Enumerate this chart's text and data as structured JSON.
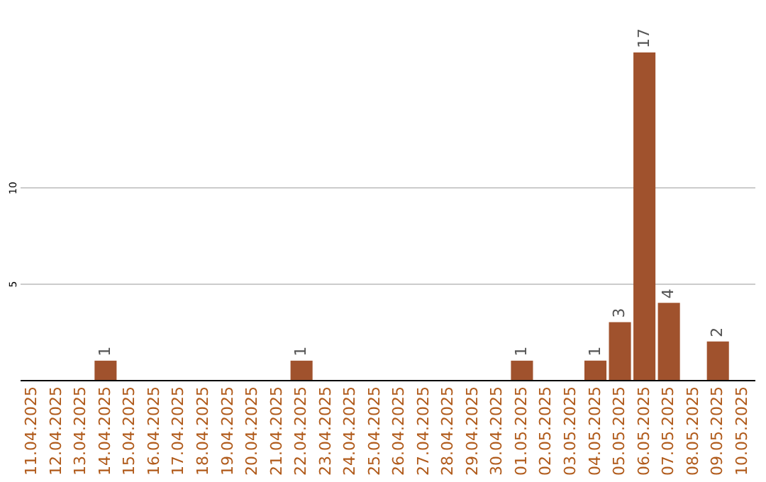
{
  "chart_data": {
    "type": "bar",
    "categories": [
      "11.04.2025",
      "12.04.2025",
      "13.04.2025",
      "14.04.2025",
      "15.04.2025",
      "16.04.2025",
      "17.04.2025",
      "18.04.2025",
      "19.04.2025",
      "20.04.2025",
      "21.04.2025",
      "22.04.2025",
      "23.04.2025",
      "24.04.2025",
      "25.04.2025",
      "26.04.2025",
      "27.04.2025",
      "28.04.2025",
      "29.04.2025",
      "30.04.2025",
      "01.05.2025",
      "02.05.2025",
      "03.05.2025",
      "04.05.2025",
      "05.05.2025",
      "06.05.2025",
      "07.05.2025",
      "08.05.2025",
      "09.05.2025",
      "10.05.2025"
    ],
    "values": [
      0,
      0,
      0,
      1,
      0,
      0,
      0,
      0,
      0,
      0,
      0,
      1,
      0,
      0,
      0,
      0,
      0,
      0,
      0,
      0,
      1,
      0,
      0,
      1,
      3,
      17,
      4,
      0,
      2,
      0
    ],
    "value_labels": [
      null,
      null,
      null,
      "1",
      null,
      null,
      null,
      null,
      null,
      null,
      null,
      "1",
      null,
      null,
      null,
      null,
      null,
      null,
      null,
      null,
      "1",
      null,
      null,
      "1",
      "3",
      "17",
      "4",
      null,
      "2",
      null
    ],
    "color": "#a0522d",
    "ylim": [
      0,
      17
    ],
    "yticks": [
      5,
      10
    ],
    "grid": "y"
  }
}
